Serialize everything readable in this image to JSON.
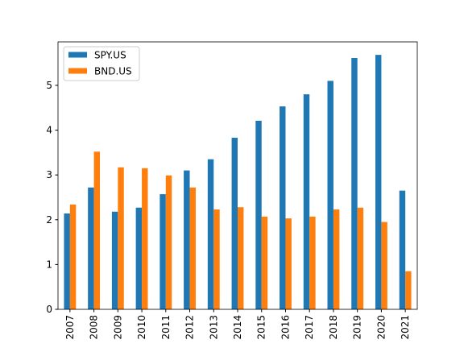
{
  "chart_data": {
    "type": "bar",
    "categories": [
      "2007",
      "2008",
      "2009",
      "2010",
      "2011",
      "2012",
      "2013",
      "2014",
      "2015",
      "2016",
      "2017",
      "2018",
      "2019",
      "2020",
      "2021"
    ],
    "series": [
      {
        "name": "SPY.US",
        "color": "#1f77b4",
        "values": [
          2.14,
          2.72,
          2.18,
          2.27,
          2.57,
          3.1,
          3.35,
          3.83,
          4.21,
          4.53,
          4.8,
          5.1,
          5.61,
          5.68,
          2.65
        ]
      },
      {
        "name": "BND.US",
        "color": "#ff7f0e",
        "values": [
          2.34,
          3.52,
          3.17,
          3.15,
          2.99,
          2.72,
          2.23,
          2.28,
          2.07,
          2.03,
          2.07,
          2.23,
          2.27,
          1.95,
          0.85
        ]
      }
    ],
    "ylim": [
      0,
      5.97
    ],
    "yticks": [
      0,
      1,
      2,
      3,
      4,
      5
    ],
    "grid": false,
    "legend": "upper left"
  }
}
